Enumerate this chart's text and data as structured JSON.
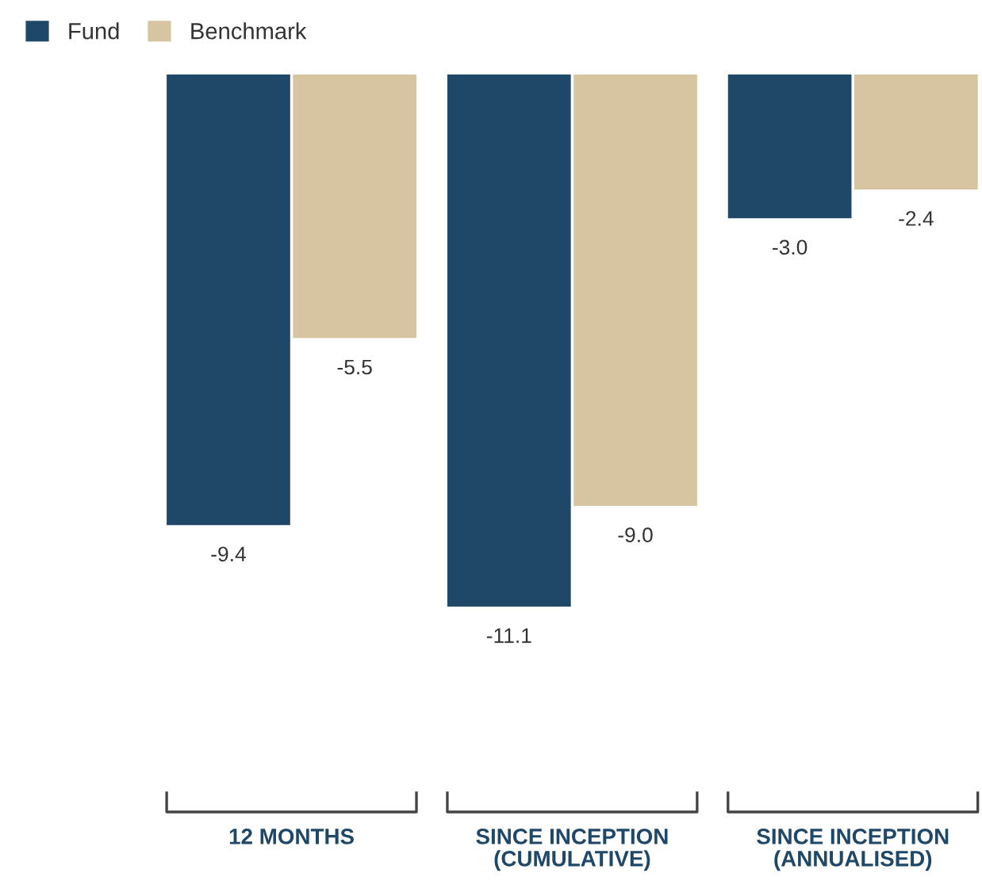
{
  "chart_data": {
    "type": "bar",
    "categories": [
      "12 MONTHS",
      "SINCE INCEPTION\n(CUMULATIVE)",
      "SINCE INCEPTION\n(ANNUALISED)"
    ],
    "series": [
      {
        "name": "Fund",
        "color": "#1f4768",
        "values": [
          -9.4,
          -11.1,
          -3.0
        ],
        "value_labels": [
          "-9.4",
          "-11.1",
          "-3.0"
        ]
      },
      {
        "name": "Benchmark",
        "color": "#d6c5a0",
        "values": [
          -5.5,
          -9.0,
          -2.4
        ],
        "value_labels": [
          "-5.5",
          "-9.0",
          "-2.4"
        ]
      }
    ],
    "legend": "top left"
  }
}
